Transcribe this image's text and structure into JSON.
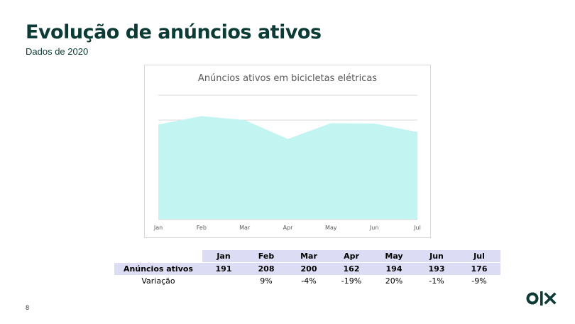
{
  "slide": {
    "title": "Evolução de anúncios ativos",
    "subtitle": "Dados de 2020",
    "page_number": "8",
    "logo_text": "OLX"
  },
  "colors": {
    "title": "#0b3b34",
    "area_fill": "#c2f4f1",
    "table_highlight": "#dcdcf5"
  },
  "chart_data": {
    "type": "area",
    "title": "Anúncios ativos em bicicletas elétricas",
    "categories": [
      "Jan",
      "Feb",
      "Mar",
      "Apr",
      "May",
      "Jun",
      "Jul"
    ],
    "series": [
      {
        "values": [
          191,
          208,
          200,
          162,
          194,
          193,
          176
        ]
      }
    ],
    "ylim": [
      0,
      250
    ],
    "grid": true,
    "legend": "none"
  },
  "table": {
    "headers": [
      "Jan",
      "Feb",
      "Mar",
      "Apr",
      "May",
      "Jun",
      "Jul"
    ],
    "row_label": "Anúncios ativos",
    "row_values": [
      "191",
      "208",
      "200",
      "162",
      "194",
      "193",
      "176"
    ],
    "variation_label": "Variação",
    "variation_values": [
      "",
      "9%",
      "-4%",
      "-19%",
      "20%",
      "-1%",
      "-9%"
    ]
  }
}
